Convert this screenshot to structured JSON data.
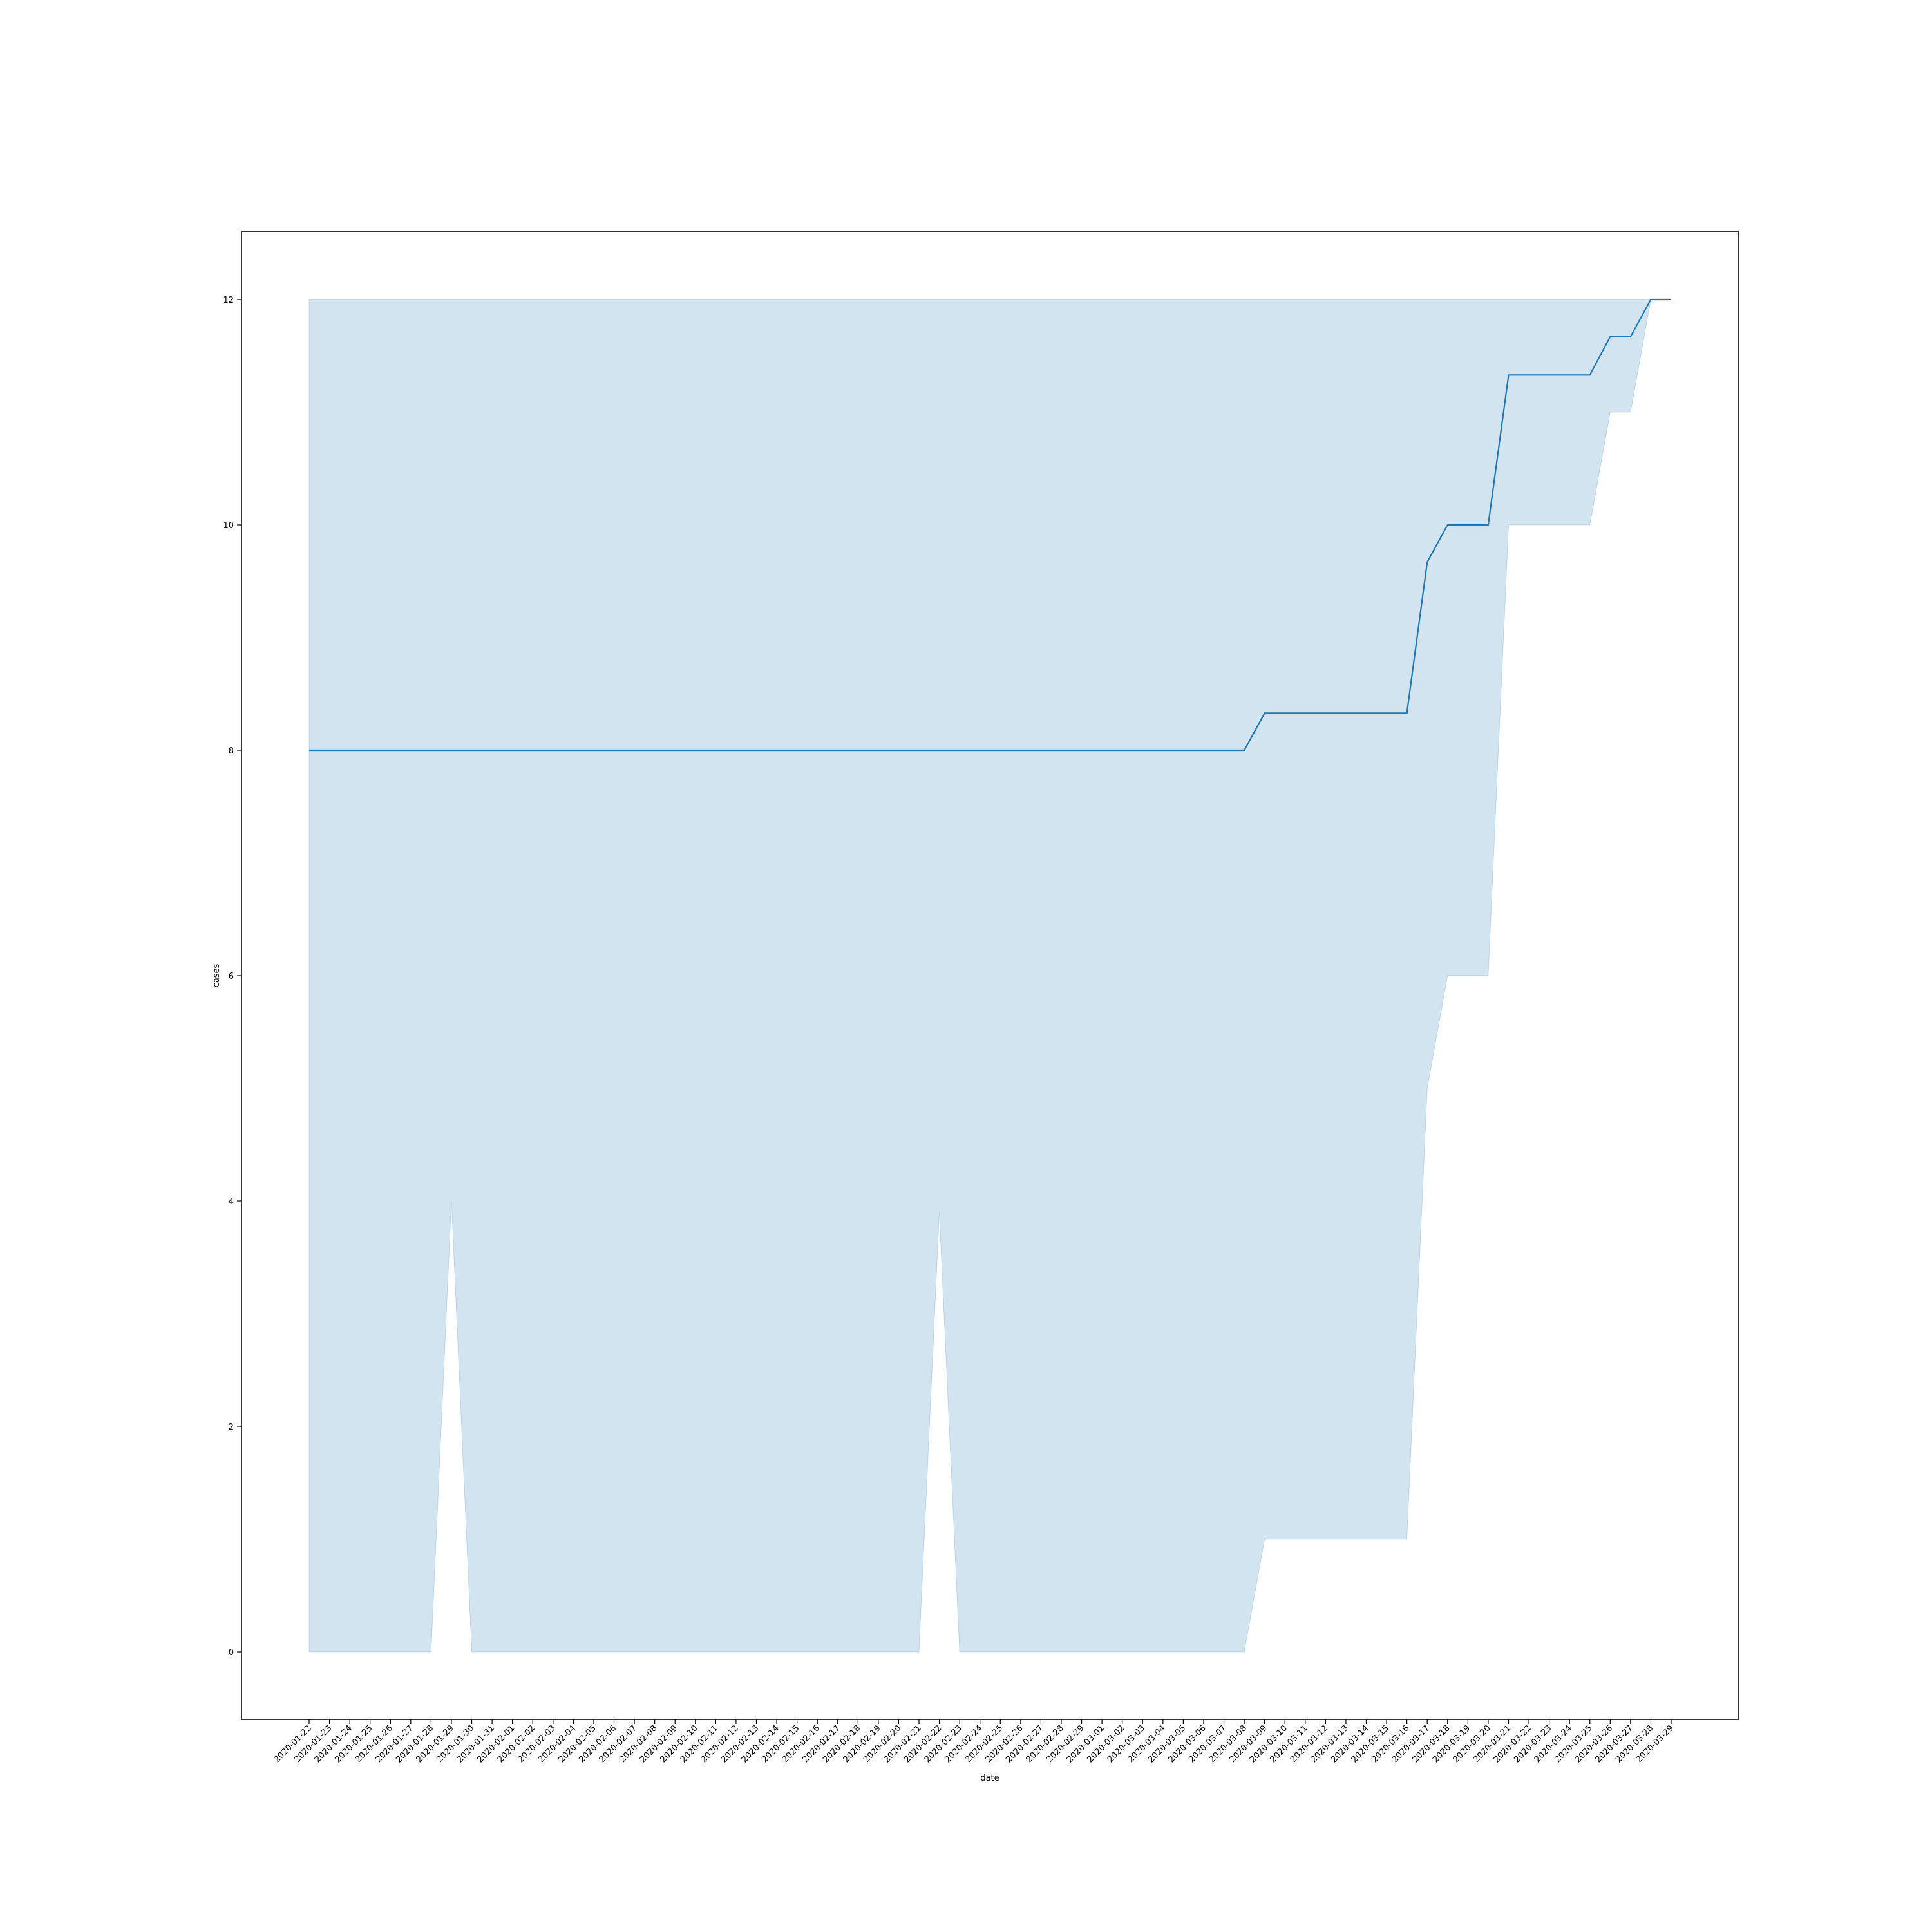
{
  "chart_data": {
    "type": "line",
    "xlabel": "date",
    "ylabel": "cases",
    "ylim": [
      -0.6,
      12.6
    ],
    "yticks": [
      0,
      2,
      4,
      6,
      8,
      10,
      12
    ],
    "grid": false,
    "legend": "none",
    "colors": {
      "line": "#1f77b4",
      "band": "#1f77b4"
    },
    "x": [
      "2020-01-22",
      "2020-01-23",
      "2020-01-24",
      "2020-01-25",
      "2020-01-26",
      "2020-01-27",
      "2020-01-28",
      "2020-01-29",
      "2020-01-30",
      "2020-01-31",
      "2020-02-01",
      "2020-02-02",
      "2020-02-03",
      "2020-02-04",
      "2020-02-05",
      "2020-02-06",
      "2020-02-07",
      "2020-02-08",
      "2020-02-09",
      "2020-02-10",
      "2020-02-11",
      "2020-02-12",
      "2020-02-13",
      "2020-02-14",
      "2020-02-15",
      "2020-02-16",
      "2020-02-17",
      "2020-02-18",
      "2020-02-19",
      "2020-02-20",
      "2020-02-21",
      "2020-02-22",
      "2020-02-23",
      "2020-02-24",
      "2020-02-25",
      "2020-02-26",
      "2020-02-27",
      "2020-02-28",
      "2020-02-29",
      "2020-03-01",
      "2020-03-02",
      "2020-03-03",
      "2020-03-04",
      "2020-03-05",
      "2020-03-06",
      "2020-03-07",
      "2020-03-08",
      "2020-03-09",
      "2020-03-10",
      "2020-03-11",
      "2020-03-12",
      "2020-03-13",
      "2020-03-14",
      "2020-03-15",
      "2020-03-16",
      "2020-03-17",
      "2020-03-18",
      "2020-03-19",
      "2020-03-20",
      "2020-03-21",
      "2020-03-22",
      "2020-03-23",
      "2020-03-24",
      "2020-03-25",
      "2020-03-26",
      "2020-03-27",
      "2020-03-28",
      "2020-03-29"
    ],
    "series": [
      {
        "values": [
          8,
          8,
          8,
          8,
          8,
          8,
          8,
          8,
          8,
          8,
          8,
          8,
          8,
          8,
          8,
          8,
          8,
          8,
          8,
          8,
          8,
          8,
          8,
          8,
          8,
          8,
          8,
          8,
          8,
          8,
          8,
          8,
          8,
          8,
          8,
          8,
          8,
          8,
          8,
          8,
          8,
          8,
          8,
          8,
          8,
          8,
          8,
          8.33,
          8.33,
          8.33,
          8.33,
          8.33,
          8.33,
          8.33,
          8.33,
          9.67,
          10,
          10,
          10,
          11.33,
          11.33,
          11.33,
          11.33,
          11.33,
          11.67,
          11.67,
          12,
          12
        ],
        "ci_lower": [
          0,
          0,
          0,
          0,
          0,
          0,
          0,
          4,
          0,
          0,
          0,
          0,
          0,
          0,
          0,
          0,
          0,
          0,
          0,
          0,
          0,
          0,
          0,
          0,
          0,
          0,
          0,
          0,
          0,
          0,
          0,
          3.9,
          0,
          0,
          0,
          0,
          0,
          0,
          0,
          0,
          0,
          0,
          0,
          0,
          0,
          0,
          0,
          1,
          1,
          1,
          1,
          1,
          1,
          1,
          1,
          5,
          6,
          6,
          6,
          10,
          10,
          10,
          10,
          10,
          11,
          11,
          12,
          12
        ],
        "ci_upper": [
          12,
          12,
          12,
          12,
          12,
          12,
          12,
          12,
          12,
          12,
          12,
          12,
          12,
          12,
          12,
          12,
          12,
          12,
          12,
          12,
          12,
          12,
          12,
          12,
          12,
          12,
          12,
          12,
          12,
          12,
          12,
          12,
          12,
          12,
          12,
          12,
          12,
          12,
          12,
          12,
          12,
          12,
          12,
          12,
          12,
          12,
          12,
          12,
          12,
          12,
          12,
          12,
          12,
          12,
          12,
          12,
          12,
          12,
          12,
          12,
          12,
          12,
          12,
          12,
          12,
          12,
          12,
          12
        ]
      }
    ]
  }
}
